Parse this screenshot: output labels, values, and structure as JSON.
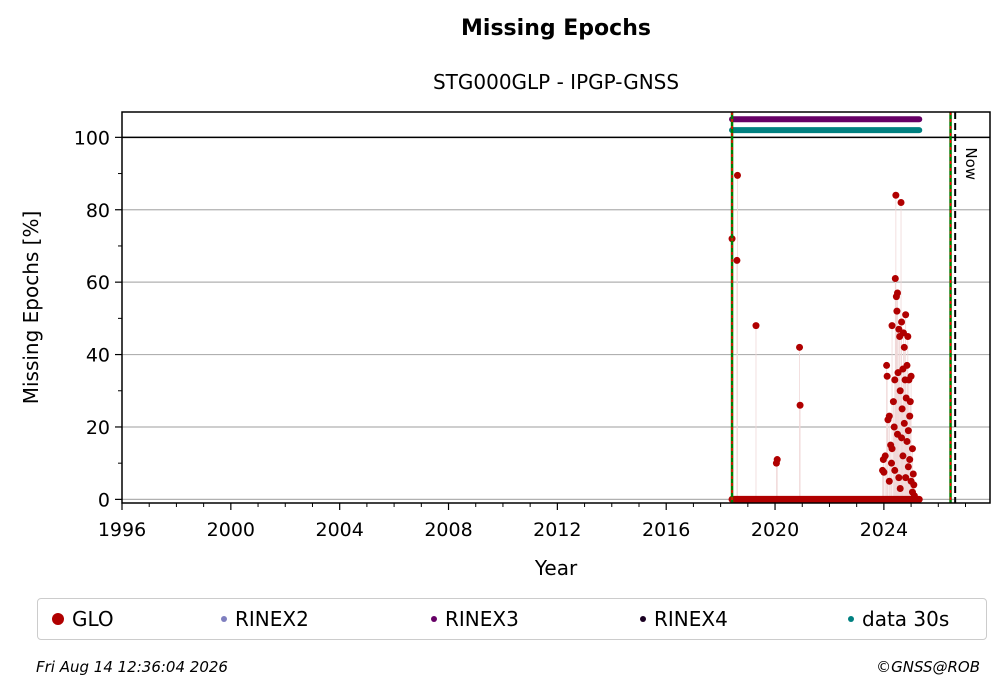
{
  "chart_data": {
    "type": "scatter",
    "title": "Missing Epochs",
    "subtitle": "STG000GLP - IPGP-GNSS",
    "xlabel": "Year",
    "ylabel": "Missing Epochs [%]",
    "xlim": [
      1996,
      2027.9
    ],
    "ylim": [
      -1,
      107
    ],
    "xticks": [
      1996,
      2000,
      2004,
      2008,
      2012,
      2016,
      2020,
      2024
    ],
    "yticks": [
      0,
      20,
      40,
      60,
      80,
      100
    ],
    "grid": "horizontal",
    "now_label": "Now",
    "vlines": [
      {
        "x": 2018.42,
        "style": "green-red-dashed"
      },
      {
        "x": 2026.45,
        "style": "green-red-dashed"
      },
      {
        "x": 2026.62,
        "style": "black-dashed"
      }
    ],
    "series": [
      {
        "name": "GLO",
        "color": "#b00000",
        "baseline": {
          "from": 2018.42,
          "to": 2025.3,
          "value": 0
        },
        "points": [
          [
            2018.42,
            72
          ],
          [
            2018.62,
            89.5
          ],
          [
            2018.6,
            66
          ],
          [
            2019.3,
            48
          ],
          [
            2020.05,
            10
          ],
          [
            2020.08,
            11
          ],
          [
            2020.9,
            42
          ],
          [
            2020.92,
            26
          ],
          [
            2023.95,
            8
          ],
          [
            2024.0,
            7.5
          ],
          [
            2023.98,
            11
          ],
          [
            2024.05,
            12
          ],
          [
            2024.1,
            37
          ],
          [
            2024.12,
            34
          ],
          [
            2024.15,
            22
          ],
          [
            2024.2,
            23
          ],
          [
            2024.25,
            15
          ],
          [
            2024.28,
            10
          ],
          [
            2024.3,
            48
          ],
          [
            2024.35,
            27
          ],
          [
            2024.38,
            20
          ],
          [
            2024.4,
            33
          ],
          [
            2024.42,
            61
          ],
          [
            2024.44,
            84
          ],
          [
            2024.46,
            56
          ],
          [
            2024.48,
            52
          ],
          [
            2024.5,
            57
          ],
          [
            2024.52,
            35
          ],
          [
            2024.55,
            47
          ],
          [
            2024.58,
            45
          ],
          [
            2024.6,
            30
          ],
          [
            2024.63,
            82
          ],
          [
            2024.65,
            49
          ],
          [
            2024.67,
            25
          ],
          [
            2024.7,
            36
          ],
          [
            2024.72,
            46
          ],
          [
            2024.75,
            42
          ],
          [
            2024.78,
            33
          ],
          [
            2024.8,
            51
          ],
          [
            2024.82,
            28
          ],
          [
            2024.85,
            37
          ],
          [
            2024.88,
            45
          ],
          [
            2024.9,
            19
          ],
          [
            2024.92,
            33
          ],
          [
            2024.95,
            23
          ],
          [
            2024.97,
            27
          ],
          [
            2025.0,
            34
          ],
          [
            2025.05,
            14
          ],
          [
            2025.08,
            7
          ],
          [
            2025.1,
            4
          ],
          [
            2025.12,
            1
          ],
          [
            2024.2,
            5
          ],
          [
            2024.4,
            8
          ],
          [
            2024.6,
            3
          ],
          [
            2024.7,
            12
          ],
          [
            2024.8,
            6
          ],
          [
            2024.9,
            9
          ],
          [
            2025.0,
            5
          ],
          [
            2024.3,
            14
          ],
          [
            2024.5,
            18
          ],
          [
            2024.75,
            21
          ],
          [
            2024.85,
            16
          ],
          [
            2024.95,
            11
          ],
          [
            2025.05,
            2
          ],
          [
            2024.65,
            17
          ],
          [
            2024.55,
            6
          ]
        ]
      },
      {
        "name": "RINEX2",
        "color": "#7f7fbf",
        "points": []
      },
      {
        "name": "RINEX3",
        "color": "#660066",
        "band": {
          "from": 2018.42,
          "to": 2025.3,
          "value": 105
        }
      },
      {
        "name": "RINEX4",
        "color": "#1a0022",
        "points": []
      },
      {
        "name": "data 30s",
        "color": "#008080",
        "band": {
          "from": 2018.42,
          "to": 2025.3,
          "value": 102
        }
      }
    ]
  },
  "legend": [
    {
      "label": "GLO",
      "color": "#b00000",
      "size": 12
    },
    {
      "label": "RINEX2",
      "color": "#7f7fbf",
      "size": 6
    },
    {
      "label": "RINEX3",
      "color": "#660066",
      "size": 6
    },
    {
      "label": "RINEX4",
      "color": "#1a0022",
      "size": 6
    },
    {
      "label": "data 30s",
      "color": "#008080",
      "size": 6
    }
  ],
  "footer": {
    "timestamp": "Fri Aug 14 12:36:04 2026",
    "credit": "©GNSS@ROB"
  }
}
